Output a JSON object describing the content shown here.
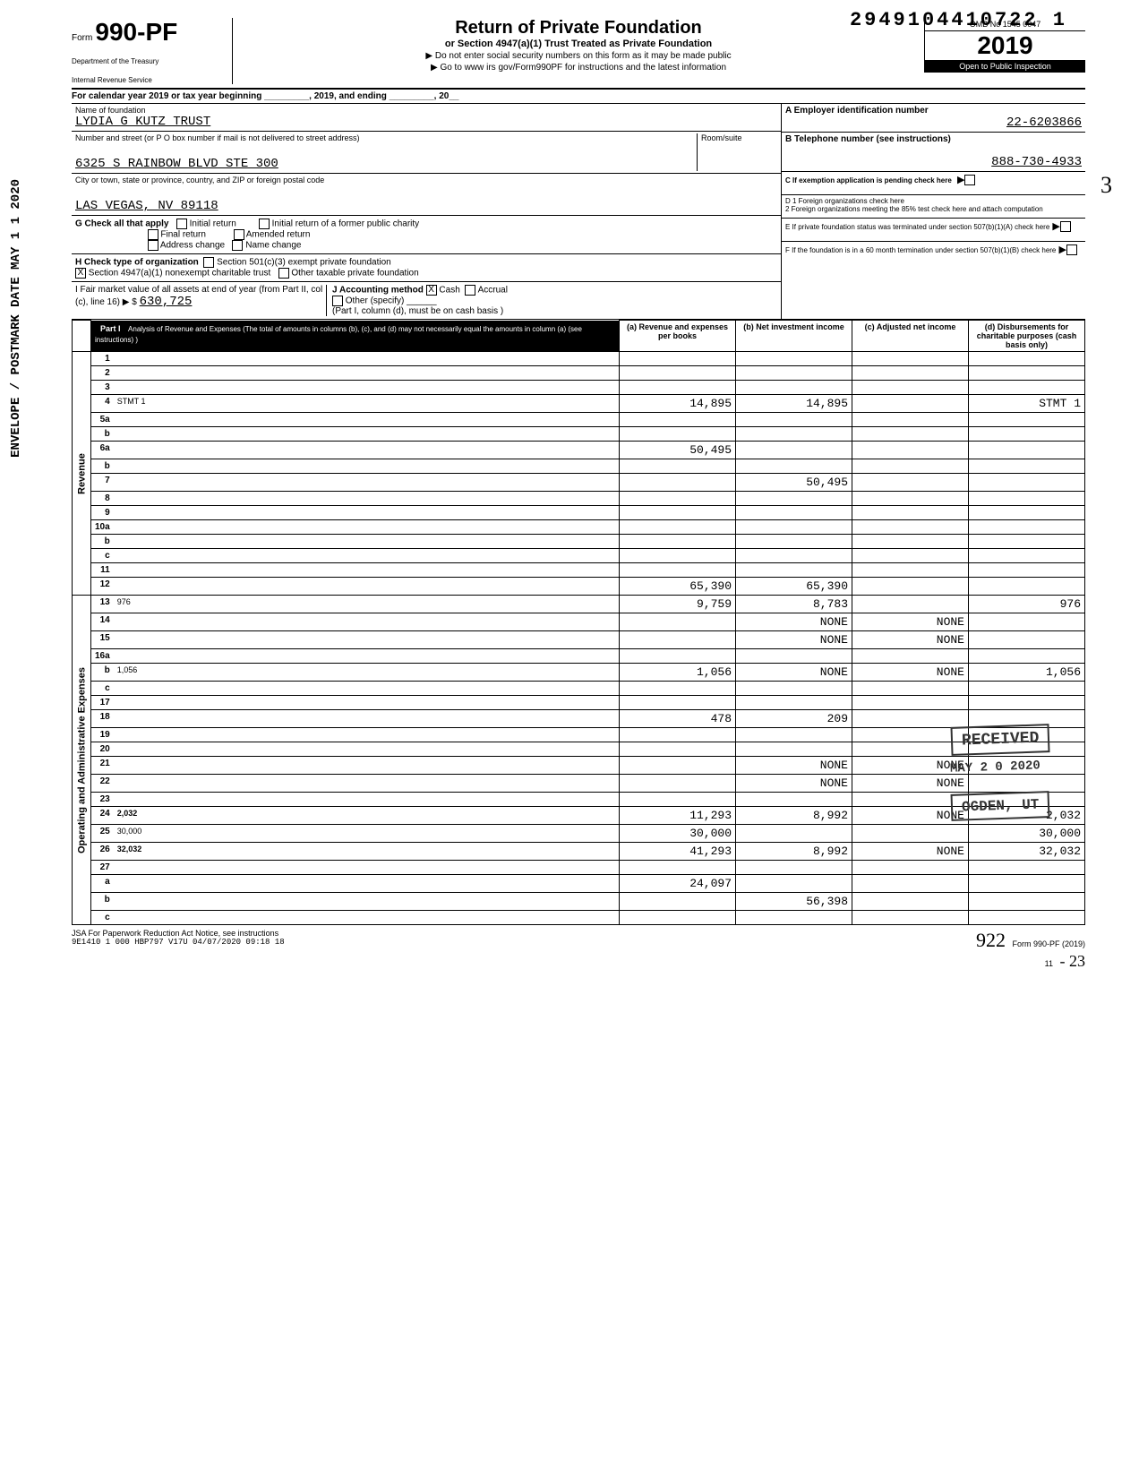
{
  "dln": "2949104410722 1",
  "form": {
    "prefix": "Form",
    "number": "990-PF",
    "dept1": "Department of the Treasury",
    "dept2": "Internal Revenue Service"
  },
  "title": {
    "main": "Return of Private Foundation",
    "sub1": "or Section 4947(a)(1) Trust Treated as Private Foundation",
    "sub2": "▶ Do not enter social security numbers on this form as it may be made public",
    "sub3": "▶ Go to www irs gov/Form990PF for instructions and the latest information"
  },
  "yearbox": {
    "omb": "OMB No 1545 0047",
    "year": "2019",
    "open": "Open to Public Inspection"
  },
  "cal_year": "For calendar year 2019 or tax year beginning _________, 2019, and ending _________, 20__",
  "foundation": {
    "name_label": "Name of foundation",
    "name": "LYDIA G KUTZ TRUST",
    "street_label": "Number and street (or P O box number if mail is not delivered to street address)",
    "street": "6325 S RAINBOW BLVD STE 300",
    "city_label": "City or town, state or province, country, and ZIP or foreign postal code",
    "city": "LAS VEGAS, NV 89118",
    "room_label": "Room/suite"
  },
  "right_col": {
    "a_label": "A  Employer identification number",
    "ein": "22-6203866",
    "b_label": "B  Telephone number (see instructions)",
    "phone": "888-730-4933",
    "c_label": "C  If exemption application is pending check here",
    "d_label": "D 1 Foreign organizations check here",
    "d2_label": "2 Foreign organizations meeting the 85% test check here and attach computation",
    "e_label": "E  If private foundation status was terminated under section 507(b)(1)(A) check here",
    "f_label": "F  If the foundation is in a 60 month termination under section 507(b)(1)(B) check here"
  },
  "g": {
    "label": "G Check all that apply",
    "opts": [
      "Initial return",
      "Final return",
      "Address change",
      "Initial return of a former public charity",
      "Amended return",
      "Name change"
    ]
  },
  "h": {
    "label": "H Check type of organization",
    "opts": [
      "Section 501(c)(3) exempt private foundation",
      "Section 4947(a)(1) nonexempt charitable trust",
      "Other taxable private foundation"
    ],
    "checked": "X"
  },
  "i": {
    "label": "I  Fair market value of all assets at end of year (from Part II, col (c), line 16) ▶ $",
    "value": "630,725"
  },
  "j": {
    "label": "J Accounting method",
    "cash": "Cash",
    "accrual": "Accrual",
    "other": "Other (specify)",
    "note": "(Part I, column (d), must be on cash basis )",
    "checked": "X"
  },
  "part1": {
    "header": "Part I",
    "title": "Analysis of Revenue and Expenses (The total of amounts in columns (b), (c), and (d) may not necessarily equal the amounts in column (a) (see instructions) )",
    "cols": {
      "a": "(a) Revenue and expenses per books",
      "b": "(b) Net investment income",
      "c": "(c) Adjusted net income",
      "d": "(d) Disbursements for charitable purposes (cash basis only)"
    }
  },
  "side_labels": {
    "revenue": "Revenue",
    "opex": "Operating and Administrative Expenses"
  },
  "rows": [
    {
      "n": "1",
      "d": "",
      "a": "",
      "b": "",
      "c": ""
    },
    {
      "n": "2",
      "d": "",
      "a": "",
      "b": "",
      "c": ""
    },
    {
      "n": "3",
      "d": "",
      "a": "",
      "b": "",
      "c": ""
    },
    {
      "n": "4",
      "d": "STMT 1",
      "a": "14,895",
      "b": "14,895",
      "c": ""
    },
    {
      "n": "5a",
      "d": "",
      "a": "",
      "b": "",
      "c": ""
    },
    {
      "n": "b",
      "d": "",
      "a": "",
      "b": "",
      "c": ""
    },
    {
      "n": "6a",
      "d": "",
      "a": "50,495",
      "b": "",
      "c": ""
    },
    {
      "n": "b",
      "d": "",
      "a": "",
      "b": "",
      "c": ""
    },
    {
      "n": "7",
      "d": "",
      "a": "",
      "b": "50,495",
      "c": ""
    },
    {
      "n": "8",
      "d": "",
      "a": "",
      "b": "",
      "c": ""
    },
    {
      "n": "9",
      "d": "",
      "a": "",
      "b": "",
      "c": ""
    },
    {
      "n": "10a",
      "d": "",
      "a": "",
      "b": "",
      "c": ""
    },
    {
      "n": "b",
      "d": "",
      "a": "",
      "b": "",
      "c": ""
    },
    {
      "n": "c",
      "d": "",
      "a": "",
      "b": "",
      "c": ""
    },
    {
      "n": "11",
      "d": "",
      "a": "",
      "b": "",
      "c": ""
    },
    {
      "n": "12",
      "d": "",
      "a": "65,390",
      "b": "65,390",
      "c": "",
      "bold": true
    },
    {
      "n": "13",
      "d": "976",
      "a": "9,759",
      "b": "8,783",
      "c": ""
    },
    {
      "n": "14",
      "d": "",
      "a": "",
      "b": "NONE",
      "c": "NONE"
    },
    {
      "n": "15",
      "d": "",
      "a": "",
      "b": "NONE",
      "c": "NONE"
    },
    {
      "n": "16a",
      "d": "",
      "a": "",
      "b": "",
      "c": ""
    },
    {
      "n": "b",
      "d": "1,056",
      "a": "1,056",
      "b": "NONE",
      "c": "NONE"
    },
    {
      "n": "c",
      "d": "",
      "a": "",
      "b": "",
      "c": ""
    },
    {
      "n": "17",
      "d": "",
      "a": "",
      "b": "",
      "c": ""
    },
    {
      "n": "18",
      "d": "",
      "a": "478",
      "b": "209",
      "c": ""
    },
    {
      "n": "19",
      "d": "",
      "a": "",
      "b": "",
      "c": ""
    },
    {
      "n": "20",
      "d": "",
      "a": "",
      "b": "",
      "c": ""
    },
    {
      "n": "21",
      "d": "",
      "a": "",
      "b": "NONE",
      "c": "NONE"
    },
    {
      "n": "22",
      "d": "",
      "a": "",
      "b": "NONE",
      "c": "NONE"
    },
    {
      "n": "23",
      "d": "",
      "a": "",
      "b": "",
      "c": ""
    },
    {
      "n": "24",
      "d": "2,032",
      "a": "11,293",
      "b": "8,992",
      "c": "NONE",
      "bold": true
    },
    {
      "n": "25",
      "d": "30,000",
      "a": "30,000",
      "b": "",
      "c": ""
    },
    {
      "n": "26",
      "d": "32,032",
      "a": "41,293",
      "b": "8,992",
      "c": "NONE",
      "bold": true
    },
    {
      "n": "27",
      "d": "",
      "a": "",
      "b": "",
      "c": ""
    },
    {
      "n": "a",
      "d": "",
      "a": "24,097",
      "b": "",
      "c": ""
    },
    {
      "n": "b",
      "d": "",
      "a": "",
      "b": "56,398",
      "c": "",
      "bold": true
    },
    {
      "n": "c",
      "d": "",
      "a": "",
      "b": "",
      "c": "",
      "bold": true
    }
  ],
  "footer": {
    "left": "JSA For Paperwork Reduction Act Notice, see instructions",
    "left2": "9E1410 1 000  HBP797 V17U 04/07/2020 09:18 18",
    "right": "Form 990-PF (2019)",
    "page": "11"
  },
  "stamps": {
    "received": "RECEIVED",
    "date": "MAY 2 0 2020",
    "ogden": "OGDEN, UT",
    "side": "ENVELOPE / POSTMARK DATE     MAY 1 1 2020"
  },
  "handwritten": {
    "three": "3",
    "sig": "922",
    "margin": "- 23"
  }
}
